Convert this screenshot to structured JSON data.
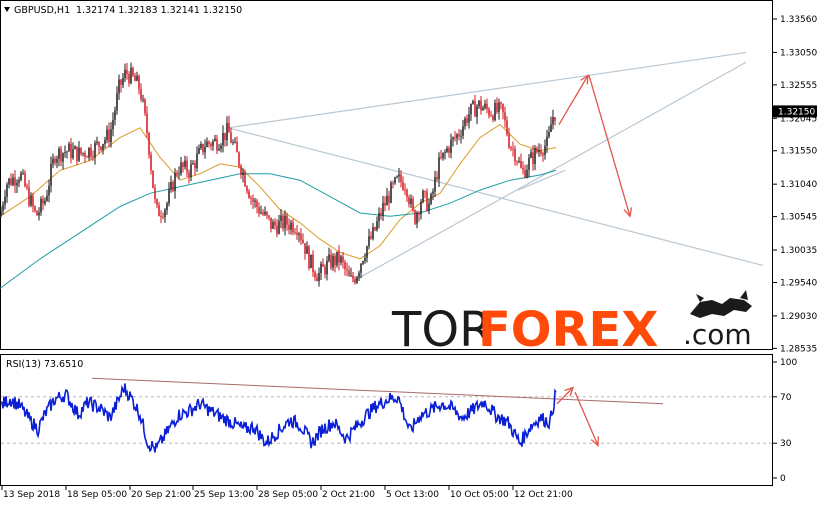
{
  "header": {
    "symbol": "GBPUSD,H1",
    "ohlc": "1.32174 1.32183 1.32141 1.32150"
  },
  "rsi_header": "RSI(13) 73.6510",
  "current_price_label": "1.32150",
  "logo": {
    "part1": "TOR",
    "part2": "FOREX",
    "part3": ".com"
  },
  "colors": {
    "candle_up": "#1a1a1a",
    "candle_down": "#d4141c",
    "ma_fast": "#d99a2b",
    "ma_slow": "#1e9ea3",
    "trendline": "#b9c7d2",
    "forecast_arrow": "#e2554a",
    "rsi_line": "#0a1fd6",
    "rsi_trendline": "#a86a6a",
    "logo_accent": "#ff4a0a"
  },
  "chart_data": [
    {
      "type": "candlestick",
      "title": "GBPUSD,H1",
      "ylim": [
        1.2851,
        1.3356
      ],
      "y_ticks": [
        "1.33560",
        "1.33050",
        "1.32555",
        "1.32045",
        "1.31550",
        "1.31040",
        "1.30545",
        "1.30035",
        "1.29540",
        "1.29030",
        "1.28535"
      ],
      "x_ticks": [
        "13 Sep 2018",
        "18 Sep 05:00",
        "20 Sep 21:00",
        "25 Sep 13:00",
        "28 Sep 05:00",
        "2 Oct 21:00",
        "5 Oct 13:00",
        "10 Oct 05:00",
        "12 Oct 21:00"
      ],
      "last_price": 1.3215,
      "price_path": [
        [
          0,
          1.3055
        ],
        [
          6,
          1.3105
        ],
        [
          20,
          1.312
        ],
        [
          36,
          1.3055
        ],
        [
          45,
          1.308
        ],
        [
          55,
          1.315
        ],
        [
          68,
          1.3155
        ],
        [
          80,
          1.315
        ],
        [
          95,
          1.316
        ],
        [
          110,
          1.318
        ],
        [
          119,
          1.325
        ],
        [
          126,
          1.3275
        ],
        [
          133,
          1.3265
        ],
        [
          140,
          1.325
        ],
        [
          148,
          1.3175
        ],
        [
          156,
          1.306
        ],
        [
          166,
          1.307
        ],
        [
          178,
          1.313
        ],
        [
          190,
          1.3125
        ],
        [
          205,
          1.3165
        ],
        [
          218,
          1.317
        ],
        [
          228,
          1.3185
        ],
        [
          240,
          1.3135
        ],
        [
          252,
          1.308
        ],
        [
          262,
          1.306
        ],
        [
          272,
          1.304
        ],
        [
          286,
          1.3045
        ],
        [
          298,
          1.304
        ],
        [
          310,
          1.2985
        ],
        [
          318,
          1.2965
        ],
        [
          330,
          1.2985
        ],
        [
          340,
          1.299
        ],
        [
          350,
          1.2955
        ],
        [
          356,
          1.2965
        ],
        [
          364,
          1.3
        ],
        [
          374,
          1.303
        ],
        [
          382,
          1.3065
        ],
        [
          390,
          1.309
        ],
        [
          398,
          1.311
        ],
        [
          406,
          1.3105
        ],
        [
          414,
          1.305
        ],
        [
          422,
          1.3085
        ],
        [
          430,
          1.307
        ],
        [
          438,
          1.313
        ],
        [
          448,
          1.316
        ],
        [
          458,
          1.318
        ],
        [
          468,
          1.321
        ],
        [
          478,
          1.3225
        ],
        [
          490,
          1.3215
        ],
        [
          502,
          1.3215
        ],
        [
          510,
          1.3165
        ],
        [
          516,
          1.315
        ],
        [
          522,
          1.312
        ],
        [
          530,
          1.314
        ],
        [
          540,
          1.316
        ],
        [
          548,
          1.3165
        ],
        [
          552,
          1.3205
        ],
        [
          556,
          1.3215
        ]
      ],
      "series": [
        {
          "name": "MA fast",
          "path": [
            [
              0,
              1.3055
            ],
            [
              30,
              1.3085
            ],
            [
              60,
              1.3125
            ],
            [
              90,
              1.314
            ],
            [
              120,
              1.3175
            ],
            [
              140,
              1.319
            ],
            [
              160,
              1.3145
            ],
            [
              180,
              1.311
            ],
            [
              200,
              1.312
            ],
            [
              220,
              1.3135
            ],
            [
              240,
              1.313
            ],
            [
              260,
              1.31
            ],
            [
              280,
              1.3065
            ],
            [
              300,
              1.3045
            ],
            [
              320,
              1.302
            ],
            [
              340,
              1.3
            ],
            [
              360,
              1.299
            ],
            [
              380,
              1.301
            ],
            [
              400,
              1.305
            ],
            [
              420,
              1.3075
            ],
            [
              440,
              1.309
            ],
            [
              460,
              1.3135
            ],
            [
              480,
              1.3175
            ],
            [
              500,
              1.3195
            ],
            [
              520,
              1.3165
            ],
            [
              540,
              1.3155
            ],
            [
              556,
              1.316
            ]
          ]
        },
        {
          "name": "MA slow",
          "path": [
            [
              0,
              1.2945
            ],
            [
              40,
              1.299
            ],
            [
              80,
              1.303
            ],
            [
              120,
              1.307
            ],
            [
              150,
              1.309
            ],
            [
              180,
              1.31
            ],
            [
              210,
              1.311
            ],
            [
              240,
              1.312
            ],
            [
              270,
              1.312
            ],
            [
              300,
              1.311
            ],
            [
              330,
              1.3085
            ],
            [
              360,
              1.306
            ],
            [
              390,
              1.3055
            ],
            [
              420,
              1.306
            ],
            [
              450,
              1.3075
            ],
            [
              480,
              1.3095
            ],
            [
              510,
              1.311
            ],
            [
              540,
              1.3118
            ],
            [
              556,
              1.3125
            ]
          ]
        }
      ],
      "trendlines": [
        {
          "from": [
            228,
            1.319
          ],
          "to": [
            746,
            1.3305
          ]
        },
        {
          "from": [
            228,
            1.319
          ],
          "to": [
            763,
            1.298
          ]
        },
        {
          "from": [
            352,
            1.2955
          ],
          "to": [
            746,
            1.329
          ]
        },
        {
          "from": [
            518,
            1.3095
          ],
          "to": [
            565,
            1.3125
          ]
        }
      ],
      "forecast_arrows": [
        {
          "from": [
            559,
            1.3195
          ],
          "to": [
            588,
            1.327
          ]
        },
        {
          "from": [
            589,
            1.327
          ],
          "to": [
            630,
            1.3055
          ]
        }
      ]
    },
    {
      "type": "line",
      "title": "RSI(13) 73.6510",
      "ylim": [
        0,
        100
      ],
      "y_ticks": [
        "100",
        "70",
        "30",
        "0"
      ],
      "levels": [
        70,
        30
      ],
      "rsi_path": [
        [
          0,
          62
        ],
        [
          10,
          68
        ],
        [
          20,
          62
        ],
        [
          30,
          50
        ],
        [
          38,
          42
        ],
        [
          45,
          55
        ],
        [
          55,
          68
        ],
        [
          66,
          72
        ],
        [
          78,
          55
        ],
        [
          88,
          65
        ],
        [
          100,
          60
        ],
        [
          110,
          52
        ],
        [
          118,
          66
        ],
        [
          124,
          78
        ],
        [
          132,
          68
        ],
        [
          140,
          55
        ],
        [
          148,
          30
        ],
        [
          156,
          25
        ],
        [
          166,
          38
        ],
        [
          178,
          54
        ],
        [
          190,
          58
        ],
        [
          200,
          64
        ],
        [
          210,
          58
        ],
        [
          222,
          52
        ],
        [
          232,
          48
        ],
        [
          244,
          42
        ],
        [
          254,
          44
        ],
        [
          266,
          30
        ],
        [
          278,
          40
        ],
        [
          290,
          50
        ],
        [
          300,
          46
        ],
        [
          312,
          30
        ],
        [
          322,
          42
        ],
        [
          334,
          48
        ],
        [
          346,
          34
        ],
        [
          356,
          44
        ],
        [
          366,
          54
        ],
        [
          376,
          62
        ],
        [
          388,
          68
        ],
        [
          398,
          70
        ],
        [
          410,
          40
        ],
        [
          420,
          54
        ],
        [
          430,
          58
        ],
        [
          442,
          64
        ],
        [
          452,
          60
        ],
        [
          462,
          52
        ],
        [
          472,
          58
        ],
        [
          484,
          66
        ],
        [
          496,
          54
        ],
        [
          508,
          48
        ],
        [
          520,
          30
        ],
        [
          530,
          44
        ],
        [
          540,
          52
        ],
        [
          550,
          48
        ],
        [
          556,
          74
        ]
      ],
      "trendline": {
        "from": [
          92,
          86
        ],
        "to": [
          663,
          64
        ]
      },
      "forecast_arrows": [
        {
          "from": [
            557,
            64
          ],
          "to": [
            573,
            78
          ]
        },
        {
          "from": [
            575,
            74
          ],
          "to": [
            598,
            28
          ]
        }
      ]
    }
  ]
}
